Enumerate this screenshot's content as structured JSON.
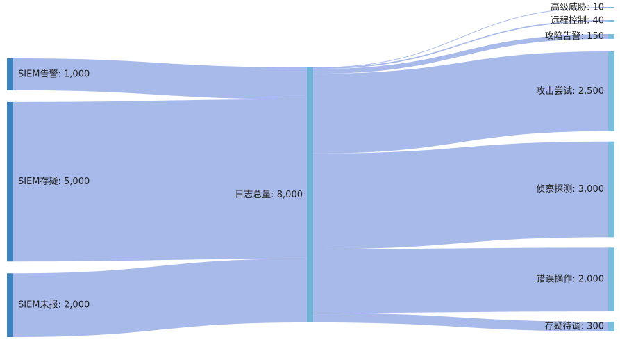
{
  "chart_data": {
    "type": "sankey",
    "title": "",
    "nodes": [
      {
        "id": "siem_alert",
        "name": "SIEM告警",
        "value": 1000,
        "label": "SIEM告警: 1,000",
        "column": 0
      },
      {
        "id": "siem_suspect",
        "name": "SIEM存疑",
        "value": 5000,
        "label": "SIEM存疑: 5,000",
        "column": 0
      },
      {
        "id": "siem_miss",
        "name": "SIEM未报",
        "value": 2000,
        "label": "SIEM未报: 2,000",
        "column": 0
      },
      {
        "id": "total",
        "name": "日志总量",
        "value": 8000,
        "label": "日志总量: 8,000",
        "column": 1
      },
      {
        "id": "apt",
        "name": "高级威胁",
        "value": 10,
        "label": "高级威胁: 10",
        "column": 2
      },
      {
        "id": "c2",
        "name": "远程控制",
        "value": 40,
        "label": "远程控制: 40",
        "column": 2
      },
      {
        "id": "compromise",
        "name": "攻陷告警",
        "value": 150,
        "label": "攻陷告警: 150",
        "column": 2
      },
      {
        "id": "attack",
        "name": "攻击尝试",
        "value": 2500,
        "label": "攻击尝试: 2,500",
        "column": 2
      },
      {
        "id": "recon",
        "name": "侦察探测",
        "value": 3000,
        "label": "侦察探测: 3,000",
        "column": 2
      },
      {
        "id": "misop",
        "name": "错误操作",
        "value": 2000,
        "label": "错误操作: 2,000",
        "column": 2
      },
      {
        "id": "pending",
        "name": "存疑待调",
        "value": 300,
        "label": "存疑待调: 300",
        "column": 2
      }
    ],
    "links": [
      {
        "source": "siem_alert",
        "target": "total",
        "value": 1000
      },
      {
        "source": "siem_suspect",
        "target": "total",
        "value": 5000
      },
      {
        "source": "siem_miss",
        "target": "total",
        "value": 2000
      },
      {
        "source": "total",
        "target": "apt",
        "value": 10
      },
      {
        "source": "total",
        "target": "c2",
        "value": 40
      },
      {
        "source": "total",
        "target": "compromise",
        "value": 150
      },
      {
        "source": "total",
        "target": "attack",
        "value": 2500
      },
      {
        "source": "total",
        "target": "recon",
        "value": 3000
      },
      {
        "source": "total",
        "target": "misop",
        "value": 2000
      },
      {
        "source": "total",
        "target": "pending",
        "value": 300
      }
    ],
    "colors": {
      "link": "#a3b6e8",
      "node_left": "#3d84be",
      "node_middle": "#6fb3d6",
      "node_right": "#79bedc"
    }
  }
}
